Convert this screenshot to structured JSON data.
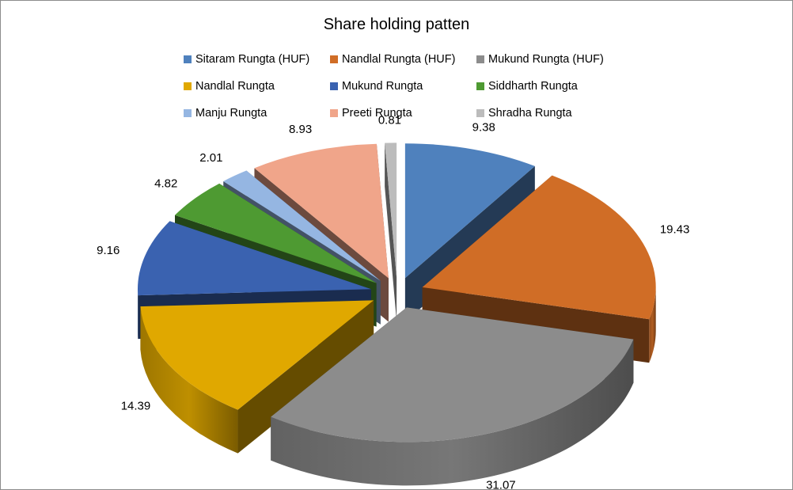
{
  "chart_data": {
    "type": "pie",
    "title": "Share holding patten",
    "legend_position": "top",
    "exploded": true,
    "three_d": true,
    "categories": [
      "Sitaram Rungta (HUF)",
      "Nandlal Rungta (HUF)",
      "Mukund Rungta (HUF)",
      "Nandlal Rungta",
      "Mukund Rungta",
      "Siddharth Rungta",
      "Manju Rungta",
      "Preeti Rungta",
      "Shradha Rungta"
    ],
    "values": [
      9.38,
      19.43,
      31.07,
      14.39,
      9.16,
      4.82,
      2.01,
      8.93,
      0.81
    ],
    "data_labels": [
      "9.38",
      "19.43",
      "31.07",
      "14.39",
      "9.16",
      "4.82",
      "2.01",
      "8.93",
      "0.81"
    ],
    "colors": [
      "#4f81bd",
      "#d06d26",
      "#8c8c8c",
      "#e0a800",
      "#3a62b0",
      "#4e9a32",
      "#95b6e2",
      "#f0a58a",
      "#bcbcbc"
    ]
  }
}
